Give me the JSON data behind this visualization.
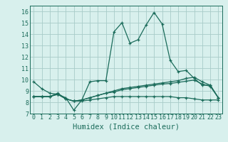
{
  "x": [
    0,
    1,
    2,
    3,
    4,
    5,
    6,
    7,
    8,
    9,
    10,
    11,
    12,
    13,
    14,
    15,
    16,
    17,
    18,
    19,
    20,
    21,
    22,
    23
  ],
  "line1": [
    9.8,
    9.2,
    8.8,
    8.7,
    8.4,
    7.3,
    8.2,
    9.8,
    9.9,
    9.9,
    14.2,
    15.0,
    13.2,
    13.5,
    14.8,
    15.9,
    14.9,
    11.7,
    10.7,
    10.8,
    10.1,
    9.5,
    9.5,
    8.4
  ],
  "line2": [
    8.5,
    8.5,
    8.5,
    8.8,
    8.3,
    8.1,
    8.1,
    8.2,
    8.3,
    8.4,
    8.5,
    8.5,
    8.5,
    8.5,
    8.5,
    8.5,
    8.5,
    8.5,
    8.4,
    8.4,
    8.3,
    8.2,
    8.2,
    8.2
  ],
  "line3": [
    8.5,
    8.5,
    8.5,
    8.7,
    8.3,
    8.1,
    8.2,
    8.4,
    8.6,
    8.8,
    9.0,
    9.2,
    9.3,
    9.4,
    9.5,
    9.6,
    9.7,
    9.8,
    9.9,
    10.1,
    10.2,
    9.8,
    9.5,
    8.4
  ],
  "line4": [
    8.5,
    8.5,
    8.5,
    8.7,
    8.3,
    8.1,
    8.2,
    8.4,
    8.6,
    8.8,
    8.9,
    9.1,
    9.2,
    9.3,
    9.4,
    9.5,
    9.6,
    9.65,
    9.75,
    9.85,
    9.95,
    9.6,
    9.4,
    8.4
  ],
  "line_color": "#1a6b5a",
  "bg_color": "#d8f0ed",
  "grid_color": "#a8ccc8",
  "xlabel": "Humidex (Indice chaleur)",
  "xlim": [
    -0.5,
    23.5
  ],
  "ylim": [
    7,
    16.5
  ],
  "yticks": [
    7,
    8,
    9,
    10,
    11,
    12,
    13,
    14,
    15,
    16
  ],
  "xticks": [
    0,
    1,
    2,
    3,
    4,
    5,
    6,
    7,
    8,
    9,
    10,
    11,
    12,
    13,
    14,
    15,
    16,
    17,
    18,
    19,
    20,
    21,
    22,
    23
  ],
  "xlabel_fontsize": 7.5,
  "tick_fontsize": 6.0,
  "linewidth": 0.9,
  "markersize": 3.5,
  "markeredgewidth": 0.9
}
